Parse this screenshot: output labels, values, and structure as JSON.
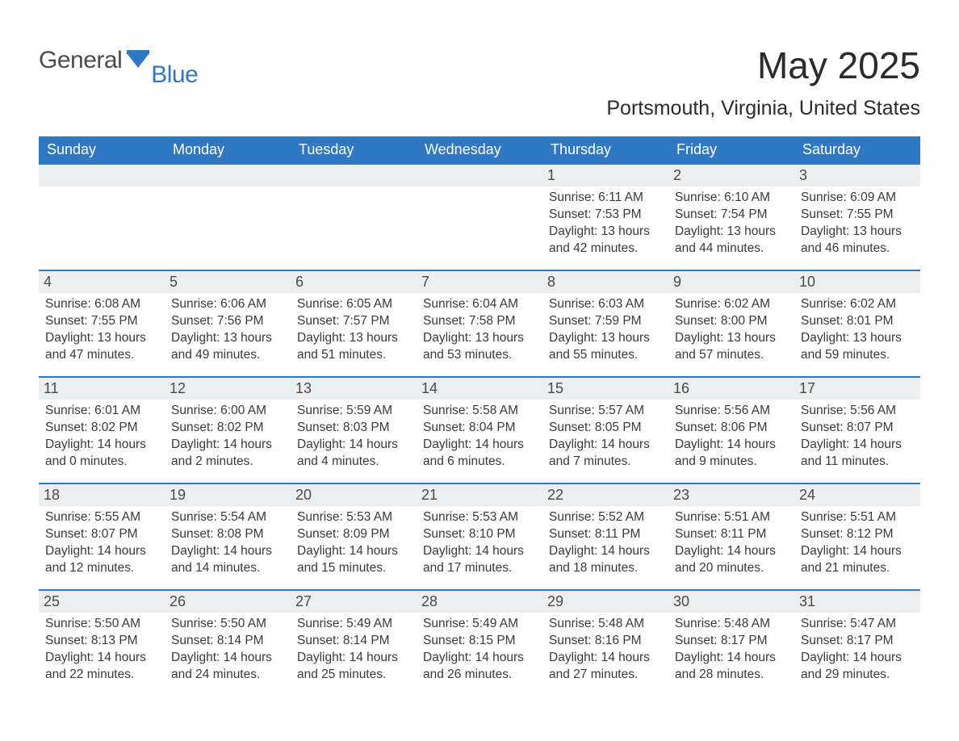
{
  "brand": {
    "part1": "General",
    "part2": "Blue",
    "flag_color": "#2f78c4"
  },
  "title": "May 2025",
  "location": "Portsmouth, Virginia, United States",
  "colors": {
    "header_bg": "#2f78c4",
    "header_text": "#ffffff",
    "daynum_bg": "#eceeef",
    "text": "#3a3a3a",
    "rule": "#2f78c4"
  },
  "layout": {
    "columns": 7,
    "rows": 5,
    "start_day_index": 4,
    "font_family": "Arial",
    "title_fontsize": 46,
    "location_fontsize": 25,
    "dow_fontsize": 18,
    "body_fontsize": 15.5
  },
  "days_of_week": [
    "Sunday",
    "Monday",
    "Tuesday",
    "Wednesday",
    "Thursday",
    "Friday",
    "Saturday"
  ],
  "days": [
    {
      "n": 1,
      "sunrise": "6:11 AM",
      "sunset": "7:53 PM",
      "daylight": "13 hours and 42 minutes."
    },
    {
      "n": 2,
      "sunrise": "6:10 AM",
      "sunset": "7:54 PM",
      "daylight": "13 hours and 44 minutes."
    },
    {
      "n": 3,
      "sunrise": "6:09 AM",
      "sunset": "7:55 PM",
      "daylight": "13 hours and 46 minutes."
    },
    {
      "n": 4,
      "sunrise": "6:08 AM",
      "sunset": "7:55 PM",
      "daylight": "13 hours and 47 minutes."
    },
    {
      "n": 5,
      "sunrise": "6:06 AM",
      "sunset": "7:56 PM",
      "daylight": "13 hours and 49 minutes."
    },
    {
      "n": 6,
      "sunrise": "6:05 AM",
      "sunset": "7:57 PM",
      "daylight": "13 hours and 51 minutes."
    },
    {
      "n": 7,
      "sunrise": "6:04 AM",
      "sunset": "7:58 PM",
      "daylight": "13 hours and 53 minutes."
    },
    {
      "n": 8,
      "sunrise": "6:03 AM",
      "sunset": "7:59 PM",
      "daylight": "13 hours and 55 minutes."
    },
    {
      "n": 9,
      "sunrise": "6:02 AM",
      "sunset": "8:00 PM",
      "daylight": "13 hours and 57 minutes."
    },
    {
      "n": 10,
      "sunrise": "6:02 AM",
      "sunset": "8:01 PM",
      "daylight": "13 hours and 59 minutes."
    },
    {
      "n": 11,
      "sunrise": "6:01 AM",
      "sunset": "8:02 PM",
      "daylight": "14 hours and 0 minutes."
    },
    {
      "n": 12,
      "sunrise": "6:00 AM",
      "sunset": "8:02 PM",
      "daylight": "14 hours and 2 minutes."
    },
    {
      "n": 13,
      "sunrise": "5:59 AM",
      "sunset": "8:03 PM",
      "daylight": "14 hours and 4 minutes."
    },
    {
      "n": 14,
      "sunrise": "5:58 AM",
      "sunset": "8:04 PM",
      "daylight": "14 hours and 6 minutes."
    },
    {
      "n": 15,
      "sunrise": "5:57 AM",
      "sunset": "8:05 PM",
      "daylight": "14 hours and 7 minutes."
    },
    {
      "n": 16,
      "sunrise": "5:56 AM",
      "sunset": "8:06 PM",
      "daylight": "14 hours and 9 minutes."
    },
    {
      "n": 17,
      "sunrise": "5:56 AM",
      "sunset": "8:07 PM",
      "daylight": "14 hours and 11 minutes."
    },
    {
      "n": 18,
      "sunrise": "5:55 AM",
      "sunset": "8:07 PM",
      "daylight": "14 hours and 12 minutes."
    },
    {
      "n": 19,
      "sunrise": "5:54 AM",
      "sunset": "8:08 PM",
      "daylight": "14 hours and 14 minutes."
    },
    {
      "n": 20,
      "sunrise": "5:53 AM",
      "sunset": "8:09 PM",
      "daylight": "14 hours and 15 minutes."
    },
    {
      "n": 21,
      "sunrise": "5:53 AM",
      "sunset": "8:10 PM",
      "daylight": "14 hours and 17 minutes."
    },
    {
      "n": 22,
      "sunrise": "5:52 AM",
      "sunset": "8:11 PM",
      "daylight": "14 hours and 18 minutes."
    },
    {
      "n": 23,
      "sunrise": "5:51 AM",
      "sunset": "8:11 PM",
      "daylight": "14 hours and 20 minutes."
    },
    {
      "n": 24,
      "sunrise": "5:51 AM",
      "sunset": "8:12 PM",
      "daylight": "14 hours and 21 minutes."
    },
    {
      "n": 25,
      "sunrise": "5:50 AM",
      "sunset": "8:13 PM",
      "daylight": "14 hours and 22 minutes."
    },
    {
      "n": 26,
      "sunrise": "5:50 AM",
      "sunset": "8:14 PM",
      "daylight": "14 hours and 24 minutes."
    },
    {
      "n": 27,
      "sunrise": "5:49 AM",
      "sunset": "8:14 PM",
      "daylight": "14 hours and 25 minutes."
    },
    {
      "n": 28,
      "sunrise": "5:49 AM",
      "sunset": "8:15 PM",
      "daylight": "14 hours and 26 minutes."
    },
    {
      "n": 29,
      "sunrise": "5:48 AM",
      "sunset": "8:16 PM",
      "daylight": "14 hours and 27 minutes."
    },
    {
      "n": 30,
      "sunrise": "5:48 AM",
      "sunset": "8:17 PM",
      "daylight": "14 hours and 28 minutes."
    },
    {
      "n": 31,
      "sunrise": "5:47 AM",
      "sunset": "8:17 PM",
      "daylight": "14 hours and 29 minutes."
    }
  ],
  "labels": {
    "sunrise": "Sunrise:",
    "sunset": "Sunset:",
    "daylight": "Daylight:"
  }
}
